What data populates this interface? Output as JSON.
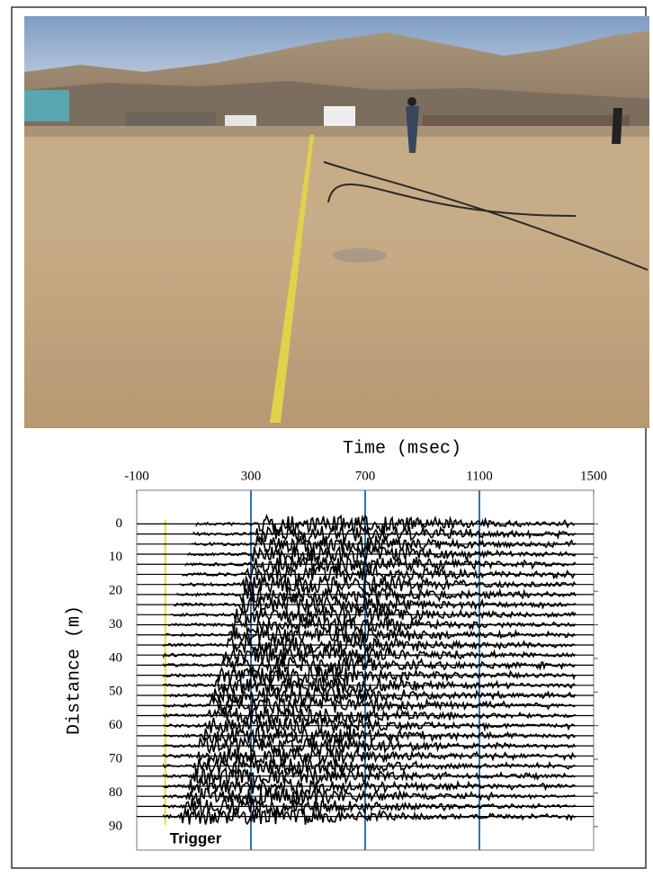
{
  "chart_data": {
    "type": "seismogram",
    "xlabel": "Time (msec)",
    "ylabel": "Distance (m)",
    "annotation": "Trigger",
    "xlim": [
      -100,
      1500
    ],
    "xticks": [
      -100,
      300,
      700,
      1100,
      1500
    ],
    "ylim": [
      -10,
      97
    ],
    "y_inverted": true,
    "yticks": [
      0,
      10,
      20,
      30,
      40,
      50,
      60,
      70,
      80,
      90
    ],
    "grid_x": true,
    "grid_color": "#2e75b6",
    "trigger_time": 0,
    "trigger_color": "#e6dc3a",
    "trace_color": "#000000",
    "distances": [
      0,
      3,
      6,
      9,
      12,
      15,
      18,
      21,
      24,
      27,
      30,
      33,
      36,
      39,
      42,
      45,
      48,
      51,
      54,
      57,
      60,
      63,
      66,
      69,
      72,
      75,
      78,
      81,
      84,
      87
    ],
    "arrivals": [
      330,
      320,
      311,
      301,
      292,
      282,
      272,
      263,
      253,
      244,
      234,
      224,
      215,
      205,
      196,
      186,
      176,
      167,
      157,
      148,
      138,
      128,
      119,
      109,
      100,
      90,
      80,
      71,
      61,
      52
    ]
  }
}
